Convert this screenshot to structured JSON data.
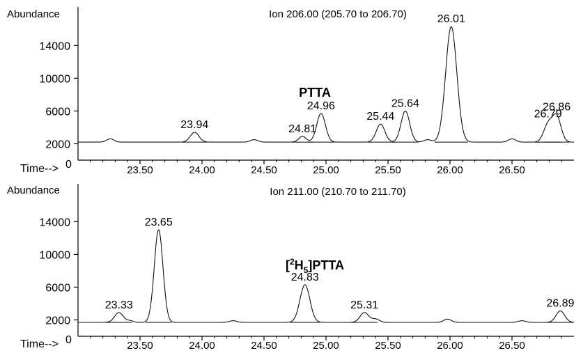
{
  "chart_data": [
    {
      "type": "line",
      "title": "Ion 206.00 (205.70 to 206.70)",
      "ylabel": "Abundance",
      "xlabel": "Time-->",
      "compound_label": "PTTA",
      "xlim": [
        23.0,
        27.0
      ],
      "ylim": [
        0,
        17000
      ],
      "x_ticks": [
        "23.50",
        "24.00",
        "24.50",
        "25.00",
        "25.50",
        "26.00",
        "26.50"
      ],
      "y_ticks": [
        "2000",
        "6000",
        "10000",
        "14000"
      ],
      "x_origin_label": "0",
      "baseline": 2200,
      "peaks": [
        {
          "rt": 23.26,
          "height": 2600,
          "width": 0.03,
          "label": ""
        },
        {
          "rt": 23.94,
          "height": 3400,
          "width": 0.035,
          "label": "23.94"
        },
        {
          "rt": 24.42,
          "height": 2500,
          "width": 0.03,
          "label": ""
        },
        {
          "rt": 24.81,
          "height": 2900,
          "width": 0.03,
          "label": "24.81"
        },
        {
          "rt": 24.96,
          "height": 5700,
          "width": 0.035,
          "label": "24.96"
        },
        {
          "rt": 25.44,
          "height": 4400,
          "width": 0.035,
          "label": "25.44"
        },
        {
          "rt": 25.64,
          "height": 6000,
          "width": 0.035,
          "label": "25.64"
        },
        {
          "rt": 25.82,
          "height": 2500,
          "width": 0.03,
          "label": ""
        },
        {
          "rt": 26.01,
          "height": 16300,
          "width": 0.045,
          "label": "26.01"
        },
        {
          "rt": 26.5,
          "height": 2600,
          "width": 0.03,
          "label": ""
        },
        {
          "rt": 26.79,
          "height": 4300,
          "width": 0.035,
          "label": "26.79"
        },
        {
          "rt": 26.86,
          "height": 5300,
          "width": 0.035,
          "label": "26.86"
        }
      ]
    },
    {
      "type": "line",
      "title": "Ion 211.00 (210.70 to 211.70)",
      "ylabel": "Abundance",
      "xlabel": "Time-->",
      "compound_label_sup": "2",
      "compound_label_main": "H",
      "compound_label_sub": "5",
      "compound_label_suffix": "]PTTA",
      "compound_label_prefix": "[",
      "xlim": [
        23.0,
        27.0
      ],
      "ylim": [
        0,
        17000
      ],
      "x_ticks": [
        "23.50",
        "24.00",
        "24.50",
        "25.00",
        "25.50",
        "26.00",
        "26.50"
      ],
      "y_ticks": [
        "2000",
        "6000",
        "10000",
        "14000"
      ],
      "x_origin_label": "0",
      "baseline": 1700,
      "peaks": [
        {
          "rt": 23.33,
          "height": 2900,
          "width": 0.035,
          "label": "23.33"
        },
        {
          "rt": 23.42,
          "height": 1900,
          "width": 0.025,
          "label": ""
        },
        {
          "rt": 23.65,
          "height": 13000,
          "width": 0.035,
          "label": "23.65"
        },
        {
          "rt": 24.25,
          "height": 1900,
          "width": 0.03,
          "label": ""
        },
        {
          "rt": 24.83,
          "height": 6300,
          "width": 0.04,
          "label": "24.83"
        },
        {
          "rt": 25.31,
          "height": 2900,
          "width": 0.035,
          "label": "25.31"
        },
        {
          "rt": 25.4,
          "height": 2100,
          "width": 0.03,
          "label": ""
        },
        {
          "rt": 25.98,
          "height": 2100,
          "width": 0.03,
          "label": ""
        },
        {
          "rt": 26.58,
          "height": 1900,
          "width": 0.03,
          "label": ""
        },
        {
          "rt": 26.89,
          "height": 3100,
          "width": 0.035,
          "label": "26.89"
        }
      ]
    }
  ]
}
